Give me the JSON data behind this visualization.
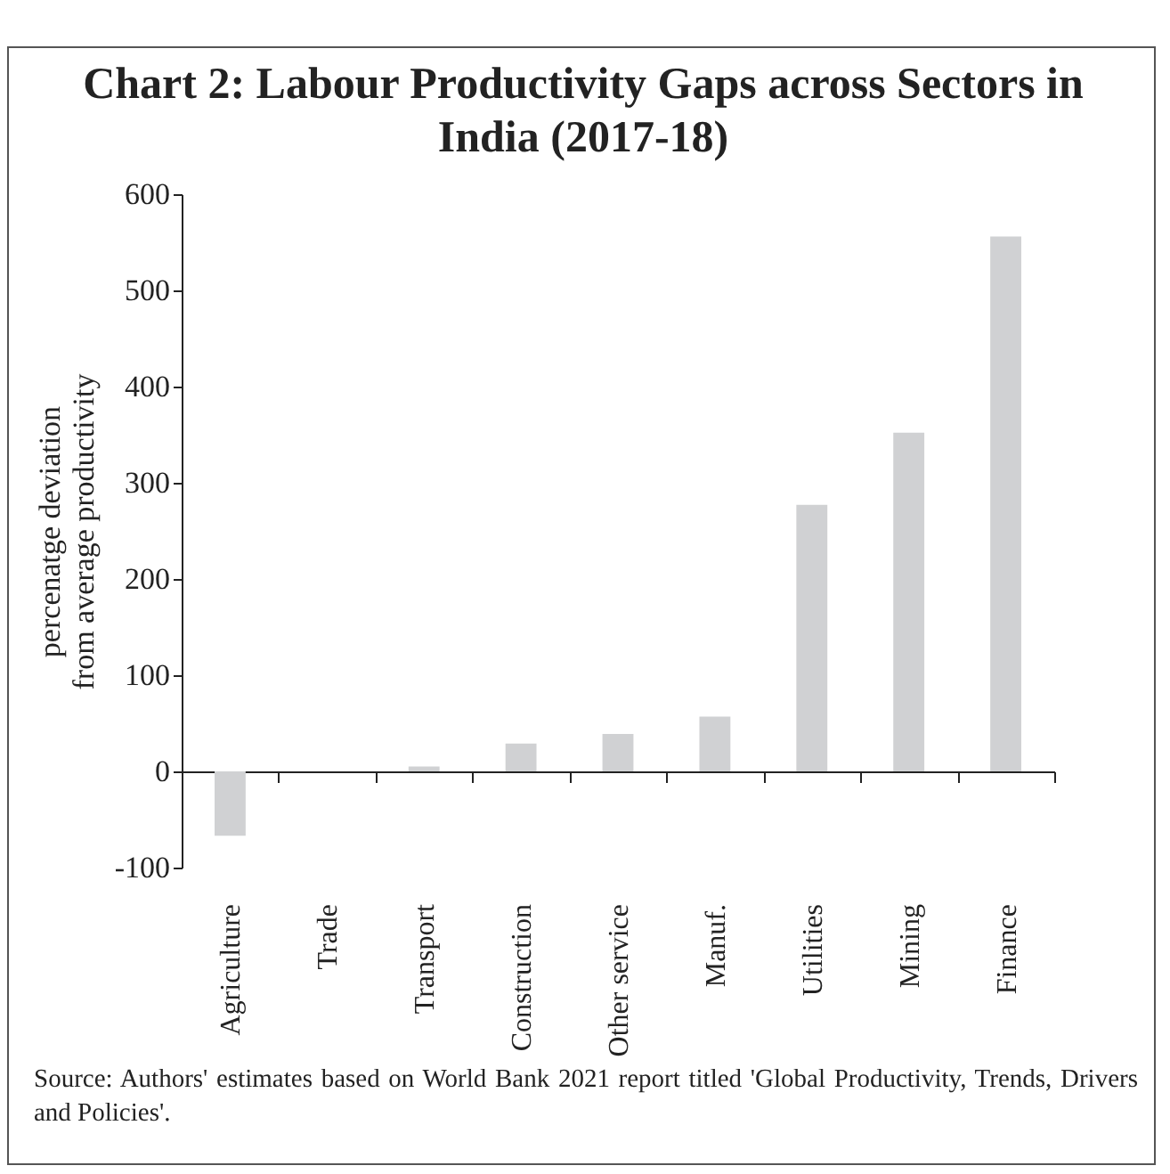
{
  "chart_data": {
    "type": "bar",
    "title": "Chart 2: Labour Productivity Gaps across Sectors in India (2017-18)",
    "ylabel": "percenatge deviation from average productivity",
    "categories": [
      "Agriculture",
      "Trade",
      "Transport",
      "Construction",
      "Other service",
      "Manuf.",
      "Utilities",
      "Mining",
      "Finance"
    ],
    "values": [
      -67,
      0,
      5,
      29,
      39,
      57,
      277,
      352,
      556
    ],
    "color": "#d0d1d3",
    "ylim": [
      -100,
      600
    ],
    "yticks": [
      -100,
      0,
      100,
      200,
      300,
      400,
      500,
      600
    ],
    "annotations": [
      "Source: Authors' estimates based on World Bank 2021 report titled 'Global Productivity, Trends, Drivers and Policies'."
    ]
  }
}
